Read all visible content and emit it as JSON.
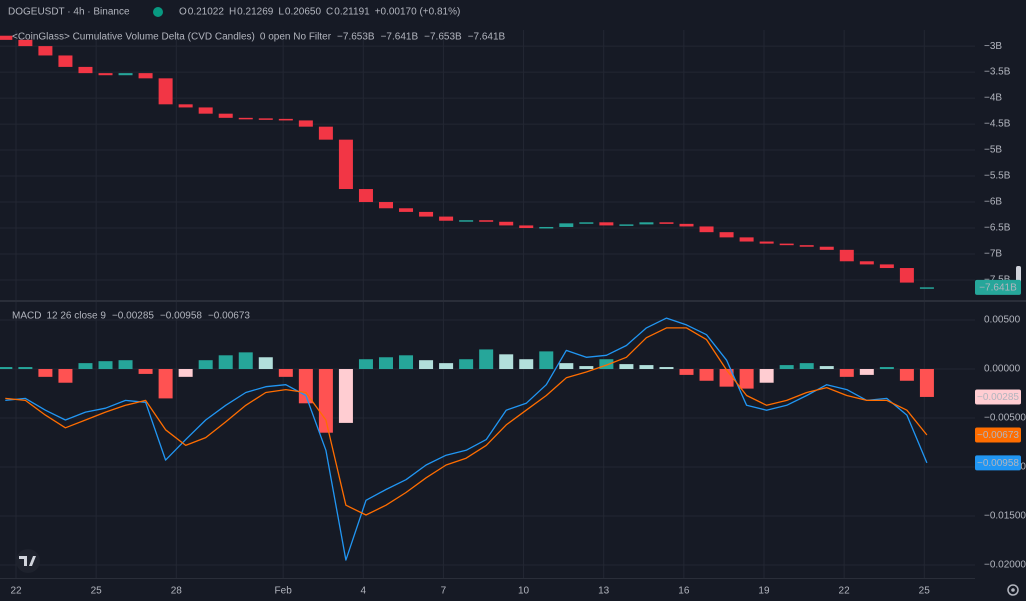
{
  "header": {
    "symbol": "DOGEUSDT · 4h · Binance",
    "ohlc": [
      [
        "O",
        "0.21022"
      ],
      [
        "H",
        "0.21269"
      ],
      [
        "L",
        "0.20650"
      ],
      [
        "C",
        "0.21191"
      ]
    ],
    "change": "+0.00170 (+0.81%)"
  },
  "chart_data": [
    {
      "type": "candlestick",
      "title": "<CoinGlass> Cumulative Volume Delta (CVD Candles)",
      "params": "0 open No Filter",
      "ohlc_labels": [
        "−7.653B",
        "−7.641B",
        "−7.653B",
        "−7.641B"
      ],
      "last_label": "−7.641B",
      "up_color": "#26a69a",
      "down_color": "#f23645",
      "x": [
        -0.4,
        0.35,
        1.1,
        1.85,
        2.6,
        3.35,
        4.1,
        4.85,
        5.6,
        6.35,
        7.1,
        7.85,
        8.6,
        9.35,
        10.1,
        10.85,
        11.6,
        12.35,
        13.1,
        13.85,
        14.6,
        15.35,
        16.1,
        16.85,
        17.6,
        18.35,
        19.1,
        19.85,
        20.6,
        21.35,
        22.1,
        22.85,
        23.6,
        24.35,
        25.1,
        25.85,
        26.6,
        27.35,
        28.1,
        28.85,
        29.6,
        30.35,
        31.1,
        31.85,
        32.6,
        33.35,
        34.1
      ],
      "open": [
        -2.8,
        -2.88,
        -3.0,
        -3.18,
        -3.4,
        -3.52,
        -3.56,
        -3.52,
        -3.62,
        -4.12,
        -4.18,
        -4.3,
        -4.38,
        -4.39,
        -4.4,
        -4.43,
        -4.55,
        -4.8,
        -5.75,
        -6.0,
        -6.12,
        -6.19,
        -6.28,
        -6.36,
        -6.35,
        -6.38,
        -6.45,
        -6.5,
        -6.48,
        -6.41,
        -6.39,
        -6.45,
        -6.43,
        -6.39,
        -6.42,
        -6.47,
        -6.58,
        -6.68,
        -6.76,
        -6.8,
        -6.83,
        -6.86,
        -6.92,
        -7.14,
        -7.2,
        -7.27,
        -7.653
      ],
      "close": [
        -2.88,
        -3.0,
        -3.18,
        -3.4,
        -3.52,
        -3.56,
        -3.52,
        -3.62,
        -4.12,
        -4.18,
        -4.3,
        -4.38,
        -4.39,
        -4.4,
        -4.43,
        -4.55,
        -4.8,
        -5.75,
        -6.0,
        -6.12,
        -6.19,
        -6.28,
        -6.36,
        -6.35,
        -6.38,
        -6.45,
        -6.5,
        -6.48,
        -6.41,
        -6.39,
        -6.45,
        -6.43,
        -6.39,
        -6.42,
        -6.47,
        -6.58,
        -6.68,
        -6.76,
        -6.8,
        -6.83,
        -6.86,
        -6.92,
        -7.14,
        -7.2,
        -7.27,
        -7.55,
        -7.641
      ],
      "xlim": [
        -0.6,
        35.9
      ],
      "ylim": [
        -7.885,
        -2.69
      ],
      "yticks": [
        {
          "value": -3,
          "label": "−3B"
        },
        {
          "value": -3.5,
          "label": "−3.5B"
        },
        {
          "value": -4,
          "label": "−4B"
        },
        {
          "value": -4.5,
          "label": "−4.5B"
        },
        {
          "value": -5,
          "label": "−5B"
        },
        {
          "value": -5.5,
          "label": "−5.5B"
        },
        {
          "value": -6,
          "label": "−6B"
        },
        {
          "value": -6.5,
          "label": "−6.5B"
        },
        {
          "value": -7,
          "label": "−7B"
        },
        {
          "value": -7.5,
          "label": "−7.5B"
        }
      ],
      "grid": true
    },
    {
      "type": "macd",
      "title": "MACD",
      "params": "12 26 close 9",
      "x": [
        -0.4,
        0.35,
        1.1,
        1.85,
        2.6,
        3.35,
        4.1,
        4.85,
        5.6,
        6.35,
        7.1,
        7.85,
        8.6,
        9.35,
        10.1,
        10.85,
        11.6,
        12.35,
        13.1,
        13.85,
        14.6,
        15.35,
        16.1,
        16.85,
        17.6,
        18.35,
        19.1,
        19.85,
        20.6,
        21.35,
        22.1,
        22.85,
        23.6,
        24.35,
        25.1,
        25.85,
        26.6,
        27.35,
        28.1,
        28.85,
        29.6,
        30.35,
        31.1,
        31.85,
        32.6,
        33.35,
        34.1
      ],
      "series": [
        {
          "type": "histogram",
          "last_label": "−0.00285",
          "color": "#ffcdd2",
          "tag_text_color": "#131722",
          "hist_colors": {
            "grow_above": "#26a69a",
            "fall_above": "#b2dfdb",
            "grow_below": "#ffcdd2",
            "fall_below": "#ff5252"
          },
          "values": [
            0.0002,
            0.0002,
            -0.0008,
            -0.0014,
            0.0006,
            0.0008,
            0.0009,
            -0.0005,
            -0.003,
            -0.0008,
            0.0009,
            0.0014,
            0.0017,
            0.0012,
            -0.0008,
            -0.0035,
            -0.0065,
            -0.0055,
            0.001,
            0.0012,
            0.0014,
            0.0009,
            0.0006,
            0.001,
            0.002,
            0.0015,
            0.001,
            0.0018,
            0.0006,
            0.0003,
            0.001,
            0.0005,
            0.0004,
            0.0002,
            -0.0006,
            -0.0012,
            -0.0018,
            -0.002,
            -0.0014,
            0.0004,
            0.0006,
            0.0003,
            -0.0008,
            -0.0006,
            0.0002,
            -0.0012,
            -0.00285
          ]
        },
        {
          "type": "line",
          "last_label": "−0.00958",
          "color": "#2196f3",
          "tag_text_color": "#ffffff",
          "values": [
            -0.0032,
            -0.003,
            -0.0042,
            -0.0052,
            -0.0044,
            -0.004,
            -0.0032,
            -0.0034,
            -0.0093,
            -0.0072,
            -0.0052,
            -0.0037,
            -0.0024,
            -0.0018,
            -0.0016,
            -0.0027,
            -0.0083,
            -0.0195,
            -0.0134,
            -0.0123,
            -0.0113,
            -0.0098,
            -0.0088,
            -0.0083,
            -0.0072,
            -0.0042,
            -0.0035,
            -0.0016,
            0.0019,
            0.0012,
            0.0014,
            0.0024,
            0.0042,
            0.0052,
            0.0045,
            0.0035,
            0.0009,
            -0.0037,
            -0.0042,
            -0.0037,
            -0.0027,
            -0.0016,
            -0.0021,
            -0.0032,
            -0.003,
            -0.0047,
            -0.00958
          ]
        },
        {
          "type": "line",
          "last_label": "−0.00673",
          "color": "#ff6d00",
          "tag_text_color": "#ffffff",
          "values": [
            -0.003,
            -0.0032,
            -0.0047,
            -0.006,
            -0.0052,
            -0.0044,
            -0.0037,
            -0.0032,
            -0.0062,
            -0.0078,
            -0.007,
            -0.0054,
            -0.0037,
            -0.0024,
            -0.0021,
            -0.0024,
            -0.0052,
            -0.0139,
            -0.0149,
            -0.0139,
            -0.0126,
            -0.0111,
            -0.0098,
            -0.0091,
            -0.0078,
            -0.0057,
            -0.0042,
            -0.0027,
            -0.0009,
            -0.0003,
            0.0004,
            0.0012,
            0.0032,
            0.0042,
            0.0042,
            0.003,
            -0.0001,
            -0.0027,
            -0.0037,
            -0.0032,
            -0.0024,
            -0.0019,
            -0.0027,
            -0.0032,
            -0.0032,
            -0.0042,
            -0.00673
          ]
        }
      ],
      "xlim": [
        -0.6,
        35.9
      ],
      "ylim": [
        -0.02133,
        0.00684
      ],
      "yticks": [
        {
          "value": 0.005,
          "label": "0.00500"
        },
        {
          "value": 0,
          "label": "0.00000"
        },
        {
          "value": -0.005,
          "label": "−0.00500"
        },
        {
          "value": -0.01,
          "label": "−0.01000"
        },
        {
          "value": -0.015,
          "label": "−0.01500"
        },
        {
          "value": -0.02,
          "label": "−0.02000"
        }
      ],
      "xticks": [
        {
          "value": 0,
          "label": "22"
        },
        {
          "value": 3,
          "label": "25"
        },
        {
          "value": 6,
          "label": "28"
        },
        {
          "value": 10,
          "label": "Feb"
        },
        {
          "value": 13,
          "label": "4"
        },
        {
          "value": 16,
          "label": "7"
        },
        {
          "value": 19,
          "label": "10"
        },
        {
          "value": 22,
          "label": "13"
        },
        {
          "value": 25,
          "label": "16"
        },
        {
          "value": 28,
          "label": "19"
        },
        {
          "value": 31,
          "label": "22"
        },
        {
          "value": 34,
          "label": "25"
        }
      ],
      "grid": true
    }
  ]
}
